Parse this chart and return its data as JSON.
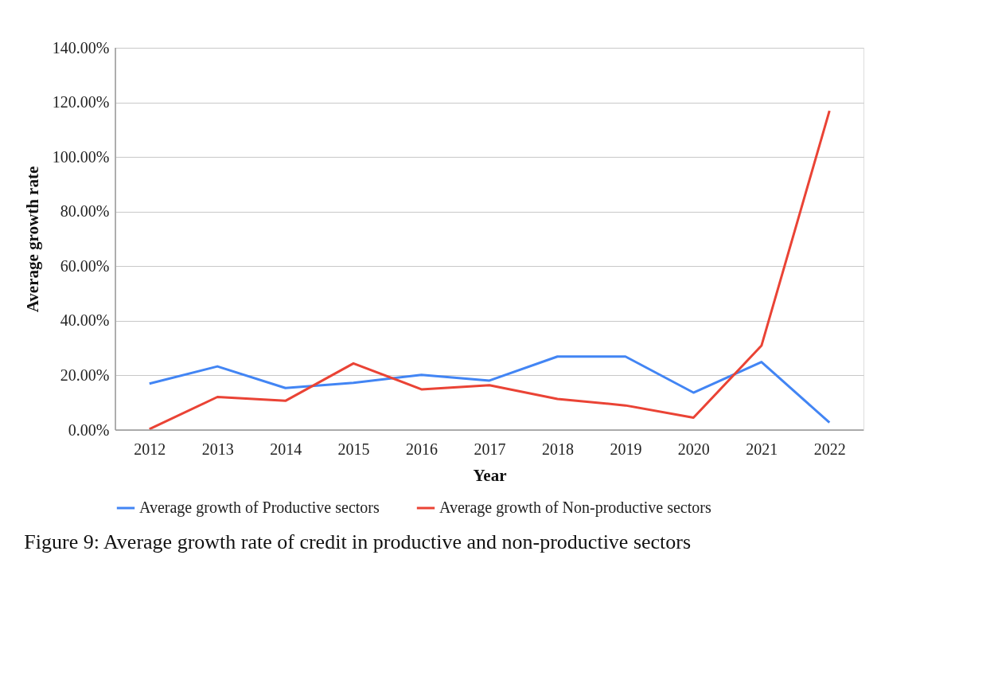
{
  "chart_data": {
    "type": "line",
    "xlabel": "Year",
    "ylabel": "Average growth rate",
    "categories": [
      "2012",
      "2013",
      "2014",
      "2015",
      "2016",
      "2017",
      "2018",
      "2019",
      "2020",
      "2021",
      "2022"
    ],
    "series": [
      {
        "name": "Average growth of Productive sectors",
        "color": "#4285f4",
        "values": [
          17.0,
          23.3,
          15.4,
          17.3,
          20.2,
          18.1,
          26.9,
          26.9,
          13.7,
          24.9,
          2.7
        ]
      },
      {
        "name": "Average growth of Non-productive sectors",
        "color": "#ea4335",
        "values": [
          0.3,
          12.1,
          10.7,
          24.4,
          14.9,
          16.4,
          11.4,
          9.0,
          4.5,
          30.9,
          116.9
        ]
      }
    ],
    "ylim": [
      0,
      140
    ],
    "yticks": [
      {
        "value": 0,
        "label": "0.00%"
      },
      {
        "value": 20,
        "label": "20.00%"
      },
      {
        "value": 40,
        "label": "40.00%"
      },
      {
        "value": 60,
        "label": "60.00%"
      },
      {
        "value": 80,
        "label": "80.00%"
      },
      {
        "value": 100,
        "label": "100.00%"
      },
      {
        "value": 120,
        "label": "120.00%"
      },
      {
        "value": 140,
        "label": "140.00%"
      }
    ],
    "grid": "y",
    "legend": "bottom",
    "marker": "none",
    "line_style": "solid",
    "annotations": [
      "Figure 9: Average growth rate of credit in productive and non-productive sectors"
    ]
  }
}
